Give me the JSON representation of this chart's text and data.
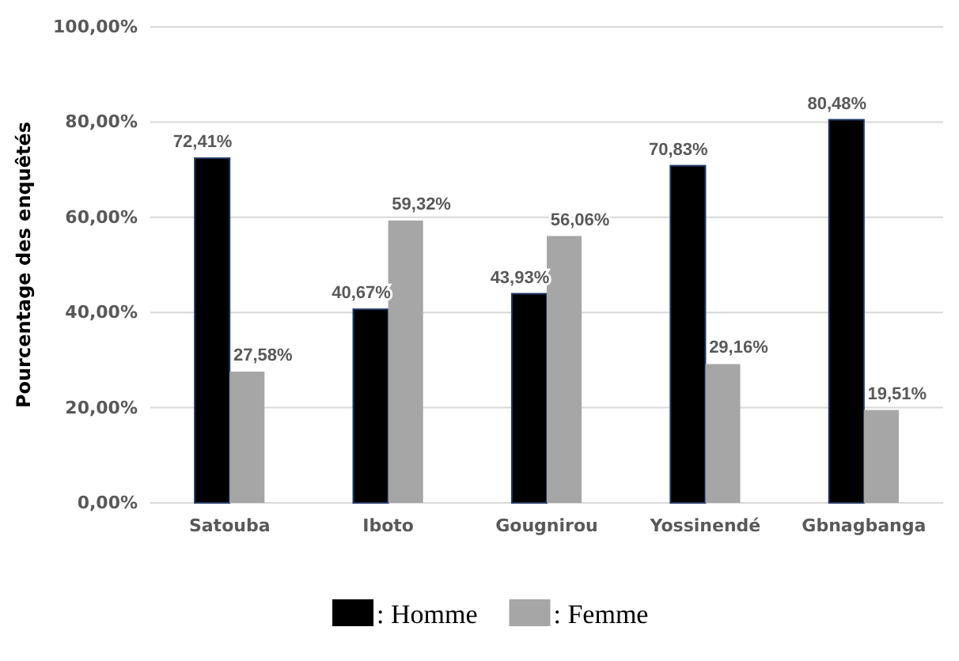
{
  "chart_data": {
    "type": "bar",
    "ylabel": "Pourcentage des enquêtés",
    "categories": [
      "Satouba",
      "Iboto",
      "Gougnirou",
      "Yossinendé",
      "Gbnagbanga"
    ],
    "series": [
      {
        "name": ": Homme",
        "color": "#000000",
        "values": [
          72.41,
          40.67,
          43.93,
          70.83,
          80.48
        ],
        "value_labels": [
          "72,41%",
          "40,67%",
          "43,93%",
          "70,83%",
          "80,48%"
        ]
      },
      {
        "name": ": Femme",
        "color": "#a6a6a6",
        "values": [
          27.58,
          59.32,
          56.06,
          29.16,
          19.51
        ],
        "value_labels": [
          "27,58%",
          "59,32%",
          "56,06%",
          "29,16%",
          "19,51%"
        ]
      }
    ],
    "ylim": [
      0,
      100
    ],
    "yticks": [
      {
        "value": 0,
        "label": "0,00%"
      },
      {
        "value": 20,
        "label": "20,00%"
      },
      {
        "value": 40,
        "label": "40,00%"
      },
      {
        "value": 60,
        "label": "60,00%"
      },
      {
        "value": 80,
        "label": "80,00%"
      },
      {
        "value": 100,
        "label": "100,00%"
      }
    ],
    "grid": "y",
    "legend": "bottom"
  }
}
